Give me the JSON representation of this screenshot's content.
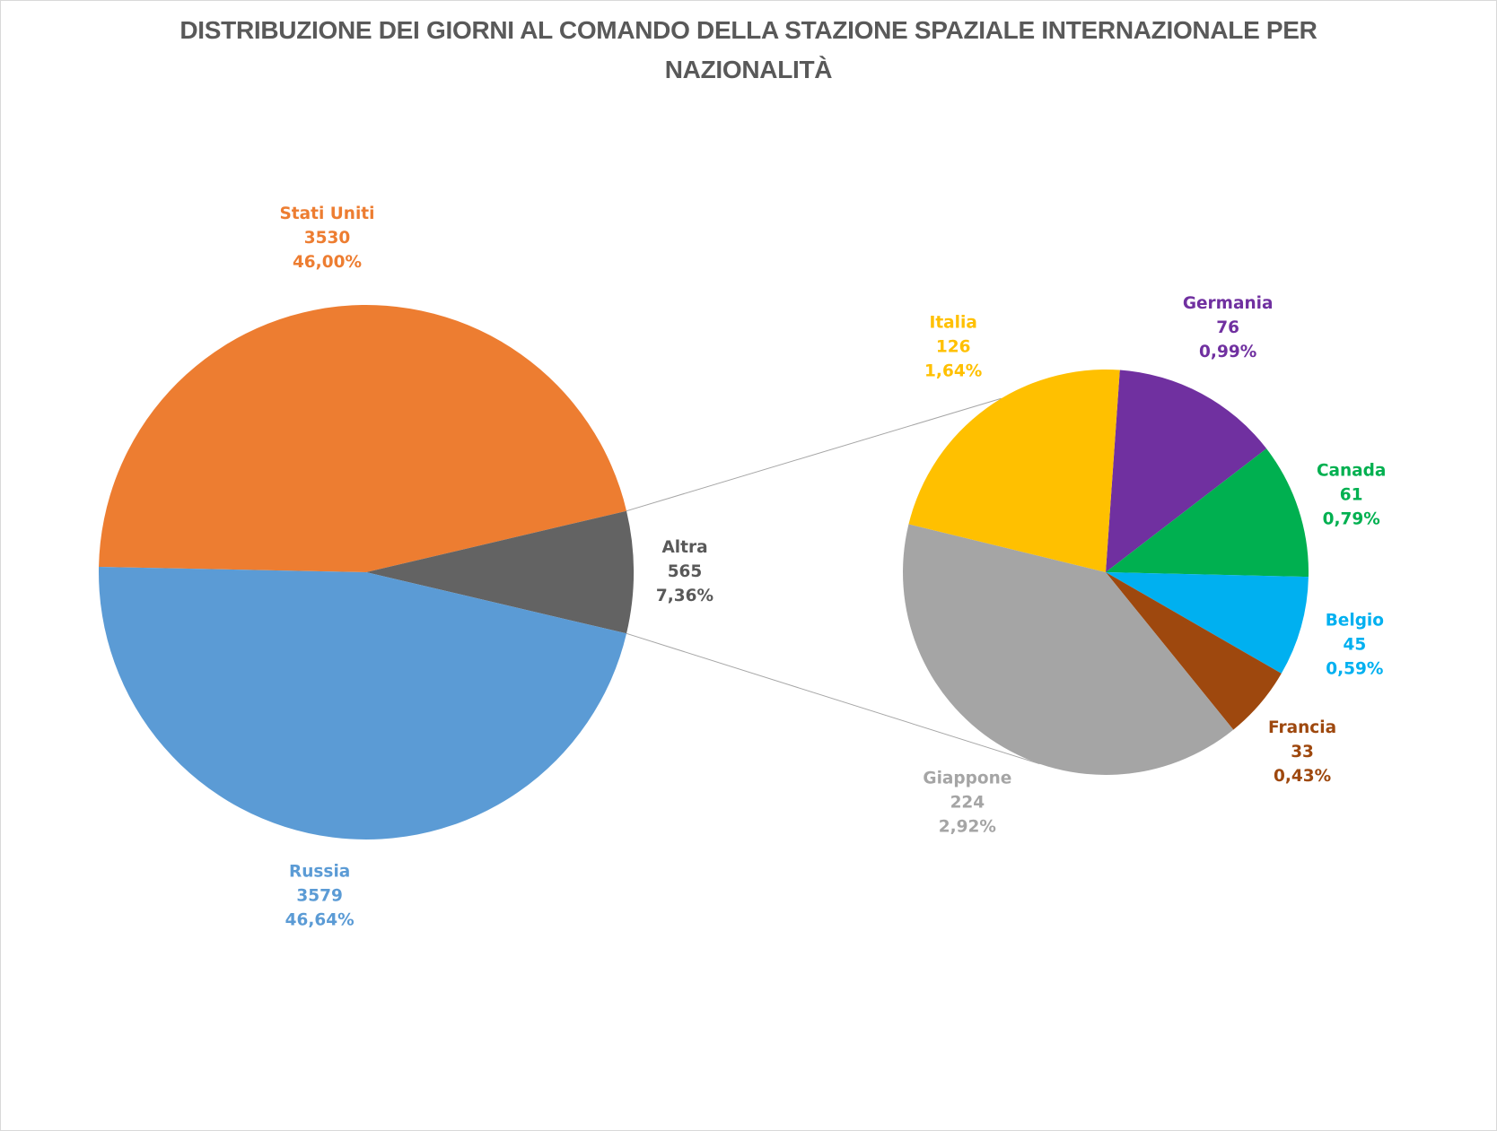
{
  "chart_data": {
    "type": "pie",
    "subtype": "pie-of-pie",
    "title": "DISTRIBUZIONE DEI GIORNI AL COMANDO DELLA STAZIONE SPAZIALE INTERNAZIONALE PER NAZIONALITÀ",
    "main_pie": [
      {
        "name": "Stati Uniti",
        "value": 3530,
        "percent": "46,00%",
        "color": "#ED7D31"
      },
      {
        "name": "Altra",
        "value": 565,
        "percent": "7,36%",
        "color": "#636363",
        "label_color": "#595959"
      },
      {
        "name": "Russia",
        "value": 3579,
        "percent": "46,64%",
        "color": "#5B9BD5"
      }
    ],
    "secondary_pie": [
      {
        "name": "Germania",
        "value": 76,
        "percent": "0,99%",
        "color": "#7030A0"
      },
      {
        "name": "Canada",
        "value": 61,
        "percent": "0,79%",
        "color": "#00B050"
      },
      {
        "name": "Belgio",
        "value": 45,
        "percent": "0,59%",
        "color": "#00B0F0"
      },
      {
        "name": "Francia",
        "value": 33,
        "percent": "0,43%",
        "color": "#9E480E"
      },
      {
        "name": "Giappone",
        "value": 224,
        "percent": "2,92%",
        "color": "#A5A5A5"
      },
      {
        "name": "Italia",
        "value": 126,
        "percent": "1,64%",
        "color": "#FFC000"
      }
    ],
    "legend": "none",
    "data_labels": "category, value, percentage"
  }
}
